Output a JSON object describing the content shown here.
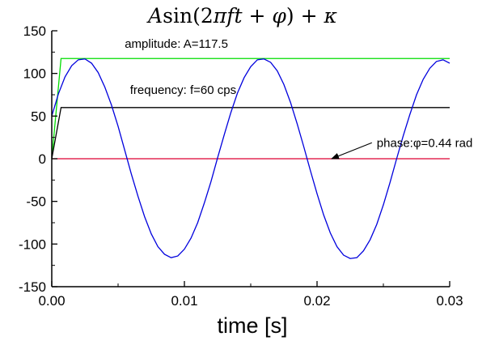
{
  "chart_data": {
    "type": "line",
    "title": {
      "parts": [
        "A",
        "sin",
        "(2",
        "π",
        "ft",
        " + ",
        "φ",
        ") + ",
        "κ"
      ]
    },
    "xlabel": "time [s]",
    "ylabel": "",
    "xlim": [
      0,
      0.03
    ],
    "ylim": [
      -150,
      150
    ],
    "x_ticks": [
      0.0,
      0.01,
      0.02,
      0.03
    ],
    "x_tick_labels": [
      "0.00",
      "0.01",
      "0.02",
      "0.03"
    ],
    "y_ticks": [
      150,
      100,
      50,
      0,
      -50,
      -100,
      -150
    ],
    "y_tick_labels": [
      "150",
      "100",
      "50",
      "0",
      "-50",
      "-100",
      "-150"
    ],
    "grid": false,
    "series": [
      {
        "color": "#00dd00",
        "x": [
          0,
          0.0007,
          0.03
        ],
        "y": [
          0,
          117.5,
          117.5
        ]
      },
      {
        "color": "#000000",
        "x": [
          0,
          0.0007,
          0.03
        ],
        "y": [
          0,
          60,
          60
        ]
      },
      {
        "color": "#dd0033",
        "x": [
          0,
          0.03
        ],
        "y": [
          0,
          0
        ]
      },
      {
        "color": "#0000dd",
        "x": [
          0.0,
          0.0005,
          0.001,
          0.0015,
          0.002,
          0.0025,
          0.003,
          0.0035,
          0.004,
          0.0045,
          0.005,
          0.0055,
          0.006,
          0.0065,
          0.007,
          0.0075,
          0.008,
          0.0085,
          0.009,
          0.0095,
          0.01,
          0.0105,
          0.011,
          0.0115,
          0.012,
          0.0125,
          0.013,
          0.0135,
          0.014,
          0.0145,
          0.015,
          0.0155,
          0.016,
          0.0165,
          0.017,
          0.0175,
          0.018,
          0.0185,
          0.019,
          0.0195,
          0.02,
          0.0205,
          0.021,
          0.0215,
          0.022,
          0.0225,
          0.023,
          0.0235,
          0.024,
          0.0245,
          0.025,
          0.0255,
          0.026,
          0.0265,
          0.027,
          0.0275,
          0.028,
          0.0285,
          0.029,
          0.0295,
          0.03
        ],
        "y": [
          50,
          76,
          96,
          109,
          116,
          117,
          112,
          101,
          84,
          63,
          38,
          10,
          -18,
          -44,
          -68,
          -88,
          -103,
          -112,
          -116,
          -114,
          -106,
          -93,
          -75,
          -52,
          -27,
          1,
          28,
          54,
          77,
          95,
          108,
          116,
          117,
          113,
          103,
          87,
          66,
          41,
          14,
          -14,
          -41,
          -66,
          -87,
          -103,
          -113,
          -117,
          -116,
          -108,
          -95,
          -77,
          -54,
          -28,
          0,
          27,
          52,
          75,
          93,
          106,
          114,
          116,
          112
        ]
      }
    ],
    "annotations": [
      {
        "text": "amplitude: A=117.5",
        "x": 0.0055,
        "y": 130
      },
      {
        "text": "frequency: f=60 cps",
        "x": 0.0059,
        "y": 76
      },
      {
        "text": "phase:φ=0.44 rad",
        "x": 0.0245,
        "y": 14,
        "arrow_to": [
          0.0211,
          0.0
        ]
      }
    ]
  }
}
